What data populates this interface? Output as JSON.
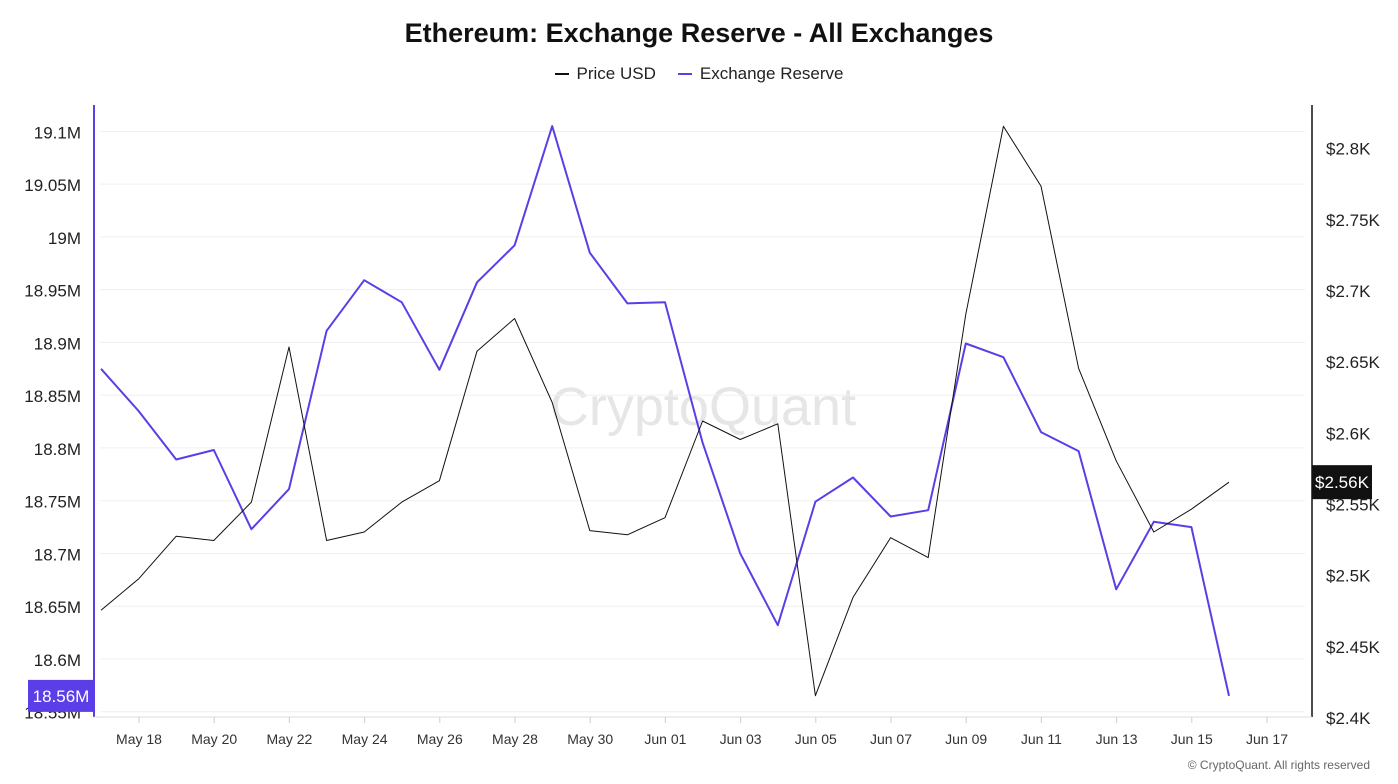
{
  "title": "Ethereum: Exchange Reserve - All Exchanges",
  "legend": [
    {
      "label": "Price USD",
      "color": "#111111"
    },
    {
      "label": "Exchange Reserve",
      "color": "#5b3ee6"
    }
  ],
  "footer": "© CryptoQuant. All rights reserved",
  "watermark": "CryptoQuant",
  "chart_data": {
    "type": "line",
    "title": "Ethereum: Exchange Reserve - All Exchanges",
    "x": [
      "May 17",
      "May 18",
      "May 19",
      "May 20",
      "May 21",
      "May 22",
      "May 23",
      "May 24",
      "May 25",
      "May 26",
      "May 27",
      "May 28",
      "May 29",
      "May 30",
      "May 31",
      "Jun 01",
      "Jun 02",
      "Jun 03",
      "Jun 04",
      "Jun 05",
      "Jun 06",
      "Jun 07",
      "Jun 08",
      "Jun 09",
      "Jun 10",
      "Jun 11",
      "Jun 12",
      "Jun 13",
      "Jun 14",
      "Jun 15",
      "Jun 16"
    ],
    "x_ticks": [
      "May 18",
      "May 20",
      "May 22",
      "May 24",
      "May 26",
      "May 28",
      "May 30",
      "Jun 01",
      "Jun 03",
      "Jun 05",
      "Jun 07",
      "Jun 09",
      "Jun 11",
      "Jun 13",
      "Jun 15",
      "Jun 17"
    ],
    "series": [
      {
        "name": "Exchange Reserve",
        "axis": "left",
        "color": "#5b3ee6",
        "values": [
          18.875,
          18.835,
          18.789,
          18.798,
          18.723,
          18.761,
          18.911,
          18.959,
          18.938,
          18.874,
          18.957,
          18.992,
          19.105,
          18.985,
          18.937,
          18.938,
          18.805,
          18.7,
          18.632,
          18.749,
          18.772,
          18.735,
          18.741,
          18.899,
          18.886,
          18.815,
          18.797,
          18.666,
          18.73,
          18.725,
          18.565
        ]
      },
      {
        "name": "Price USD",
        "axis": "right",
        "color": "#111111",
        "values": [
          2475,
          2497,
          2527,
          2524,
          2551,
          2660,
          2524,
          2530,
          2551,
          2566,
          2657,
          2680,
          2621,
          2531,
          2528,
          2540,
          2608,
          2595,
          2606,
          2415,
          2484,
          2526,
          2512,
          2683,
          2815,
          2773,
          2645,
          2580,
          2530,
          2546,
          2565
        ]
      }
    ],
    "left_axis": {
      "ticks": [
        "19.1M",
        "19.05M",
        "19M",
        "18.95M",
        "18.9M",
        "18.85M",
        "18.8M",
        "18.75M",
        "18.7M",
        "18.65M",
        "18.6M",
        "18.55M"
      ],
      "tick_values": [
        19.1,
        19.05,
        19.0,
        18.95,
        18.9,
        18.85,
        18.8,
        18.75,
        18.7,
        18.65,
        18.6,
        18.55
      ],
      "ylim": [
        18.545,
        19.125
      ]
    },
    "right_axis": {
      "ticks": [
        "$2.8K",
        "$2.75K",
        "$2.7K",
        "$2.65K",
        "$2.6K",
        "$2.55K",
        "$2.5K",
        "$2.45K",
        "$2.4K"
      ],
      "tick_values": [
        2800,
        2750,
        2700,
        2650,
        2600,
        2550,
        2500,
        2450,
        2400
      ],
      "ylim": [
        2400,
        2830
      ]
    },
    "current_left_label": "18.56M",
    "current_right_label": "$2.56K",
    "grid": true,
    "legend_position": "top-center"
  }
}
